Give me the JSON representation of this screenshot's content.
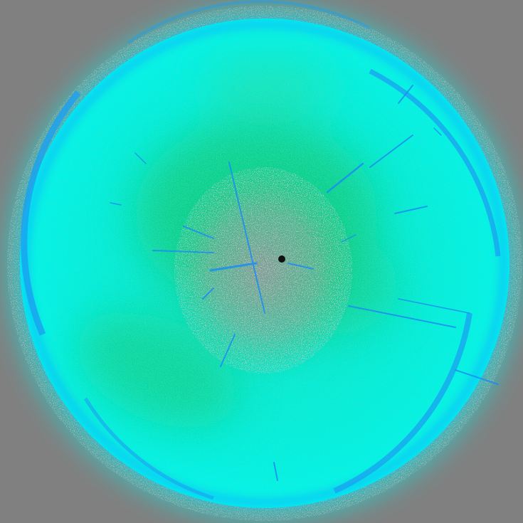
{
  "colors": {
    "background": "#808080",
    "outer_glow": "#00f5f0",
    "rim": "#1aa0f0",
    "inner_cyan": "#00efe4",
    "green": "#10c878",
    "gray_core": "#8c9a98",
    "spark": "#1b8ef0",
    "hole": "#101010"
  },
  "scene": {
    "subject": "glowing-cyan-orb"
  }
}
